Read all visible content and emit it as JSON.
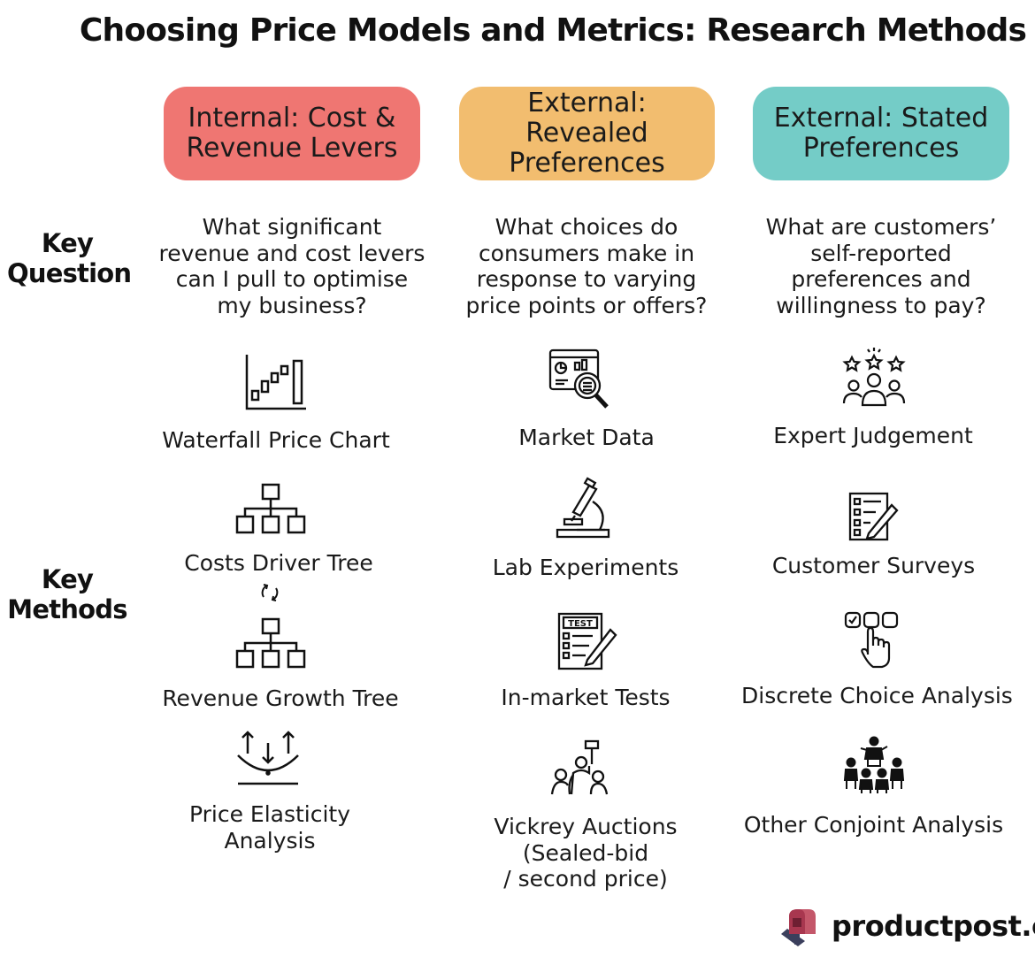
{
  "title": "Choosing Price Models and Metrics: Research Methods",
  "row_labels": {
    "key_question": [
      "Key",
      "Question"
    ],
    "key_methods": [
      "Key",
      "Methods"
    ]
  },
  "colors": {
    "internal": "#ef7672",
    "revealed": "#f2bd6f",
    "stated": "#74ccc7"
  },
  "columns": [
    {
      "header": [
        "Internal: Cost &",
        "Revenue Levers"
      ],
      "question": [
        "What significant",
        "revenue and cost levers",
        "can I pull to optimise",
        "my business?"
      ],
      "methods": [
        {
          "label": [
            "Waterfall Price Chart"
          ],
          "icon": "waterfall-chart-icon"
        },
        {
          "label": [
            "Costs Driver Tree"
          ],
          "icon": "hierarchy-tree-icon"
        },
        {
          "label": [
            "Revenue Growth Tree"
          ],
          "icon": "hierarchy-tree-icon"
        },
        {
          "label": [
            "Price Elasticity",
            "Analysis"
          ],
          "icon": "elasticity-arrows-icon"
        }
      ]
    },
    {
      "header": [
        "External: Revealed",
        "Preferences"
      ],
      "question": [
        "What choices do",
        "consumers make in",
        "response to varying",
        "price points or offers?"
      ],
      "methods": [
        {
          "label": [
            "Market Data"
          ],
          "icon": "market-data-magnifier-icon"
        },
        {
          "label": [
            "Lab Experiments"
          ],
          "icon": "microscope-icon"
        },
        {
          "label": [
            "In-market Tests"
          ],
          "icon": "test-sheet-icon"
        },
        {
          "label": [
            "Vickrey Auctions",
            "(Sealed-bid",
            "/ second price)"
          ],
          "icon": "auction-bidder-icon"
        }
      ]
    },
    {
      "header": [
        "External: Stated",
        "Preferences"
      ],
      "question": [
        "What are customers’",
        "self-reported",
        "preferences and",
        "willingness to pay?"
      ],
      "methods": [
        {
          "label": [
            "Expert Judgement"
          ],
          "icon": "expert-rating-icon"
        },
        {
          "label": [
            "Customer Surveys"
          ],
          "icon": "survey-form-icon"
        },
        {
          "label": [
            "Discrete Choice Analysis"
          ],
          "icon": "choice-selection-icon"
        },
        {
          "label": [
            "Other Conjoint Analysis"
          ],
          "icon": "group-meeting-icon"
        }
      ]
    }
  ],
  "brand": {
    "name": "productpost.co",
    "logo": "mailbox-logo"
  }
}
